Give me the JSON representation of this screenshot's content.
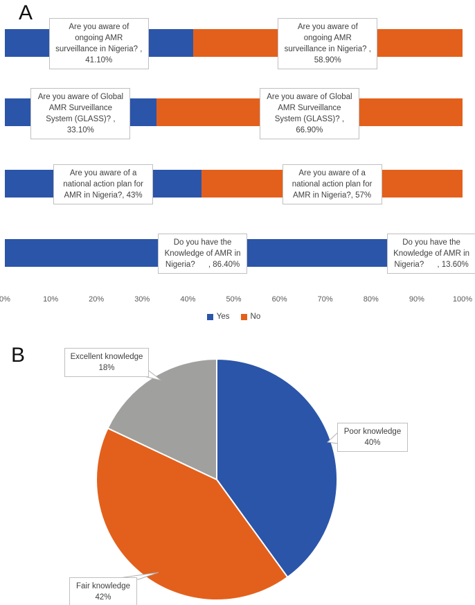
{
  "panel_a": {
    "letter": "A"
  },
  "panel_b": {
    "letter": "B"
  },
  "colors": {
    "yes_blue": "#2B55A9",
    "no_orange": "#E3601C",
    "excellent_gray": "#A0A09E",
    "box_border": "#BFBFBF",
    "axis_text": "#595959",
    "leader": "#AFAFAF"
  },
  "chart_data": [
    {
      "type": "bar",
      "subtype": "stacked-horizontal",
      "panel": "A",
      "categories": [
        "Are you aware of ongoing AMR surveillance in Nigeria?",
        "Are you aware of Global AMR Surveillance System (GLASS)?",
        "Are you aware of a national action plan for AMR in Nigeria?",
        "Do you have the Knowledge of AMR in Nigeria?"
      ],
      "series": [
        {
          "name": "Yes",
          "color_key": "yes_blue",
          "values": [
            41.1,
            33.1,
            43,
            86.4
          ]
        },
        {
          "name": "No",
          "color_key": "no_orange",
          "values": [
            58.9,
            66.9,
            57,
            13.6
          ]
        }
      ],
      "data_labels": [
        {
          "yes": "Are you aware of\nongoing AMR\nsurveillance in Nigeria? ,\n41.10%",
          "no": "Are you aware of\nongoing AMR\nsurveillance in Nigeria? ,\n58.90%"
        },
        {
          "yes": "Are you aware of Global\nAMR Surveillance\nSystem (GLASS)? ,\n33.10%",
          "no": "Are you aware of Global\nAMR Surveillance\nSystem (GLASS)? ,\n66.90%"
        },
        {
          "yes": "Are you aware of a\nnational action plan for\nAMR in Nigeria?, 43%",
          "no": "Are you aware of a\nnational action plan for\nAMR in Nigeria?, 57%"
        },
        {
          "yes": "Do you have the\nKnowledge of AMR in\nNigeria?      , 86.40%",
          "no": "Do you have the\nKnowledge of AMR in\nNigeria?      , 13.60%"
        }
      ],
      "x_ticks": [
        "0%",
        "10%",
        "20%",
        "30%",
        "40%",
        "50%",
        "60%",
        "70%",
        "80%",
        "90%",
        "100%"
      ],
      "xlim": [
        0,
        100
      ],
      "grid": false,
      "legend": {
        "position": "bottom",
        "entries": [
          {
            "label": "Yes"
          },
          {
            "label": "No"
          }
        ]
      }
    },
    {
      "type": "pie",
      "panel": "B",
      "start_angle_deg": 0,
      "direction": "clockwise",
      "slices": [
        {
          "label": "Poor knowledge",
          "pct": 40,
          "color_key": "yes_blue",
          "callout": "Poor knowledge\n40%"
        },
        {
          "label": "Fair knowledge",
          "pct": 42,
          "color_key": "no_orange",
          "callout": "Fair knowledge\n42%"
        },
        {
          "label": "Excellent knowledge",
          "pct": 18,
          "color_key": "excellent_gray",
          "callout": "Excellent knowledge\n18%"
        }
      ]
    }
  ]
}
